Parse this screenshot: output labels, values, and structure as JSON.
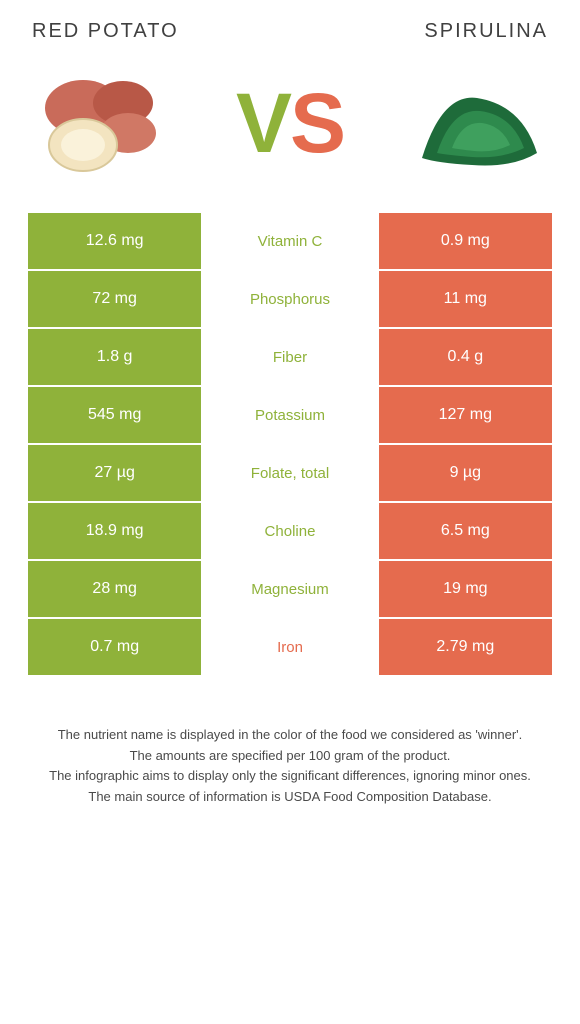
{
  "colors": {
    "leftBg": "#8fb23a",
    "rightBg": "#e56b4e",
    "leftText": "#8fb23a",
    "rightText": "#e56b4e",
    "white": "#ffffff"
  },
  "header": {
    "left": "RED POTATO",
    "right": "SPIRULINA",
    "vs_v": "V",
    "vs_s": "S"
  },
  "rows": [
    {
      "left": "12.6 mg",
      "mid": "Vitamin C",
      "right": "0.9 mg",
      "winner": "left"
    },
    {
      "left": "72 mg",
      "mid": "Phosphorus",
      "right": "11 mg",
      "winner": "left"
    },
    {
      "left": "1.8 g",
      "mid": "Fiber",
      "right": "0.4 g",
      "winner": "left"
    },
    {
      "left": "545 mg",
      "mid": "Potassium",
      "right": "127 mg",
      "winner": "left"
    },
    {
      "left": "27 µg",
      "mid": "Folate, total",
      "right": "9 µg",
      "winner": "left"
    },
    {
      "left": "18.9 mg",
      "mid": "Choline",
      "right": "6.5 mg",
      "winner": "left"
    },
    {
      "left": "28 mg",
      "mid": "Magnesium",
      "right": "19 mg",
      "winner": "left"
    },
    {
      "left": "0.7 mg",
      "mid": "Iron",
      "right": "2.79 mg",
      "winner": "right"
    }
  ],
  "footnotes": [
    "The nutrient name is displayed in the color of the food we considered as 'winner'.",
    "The amounts are specified per 100 gram of the product.",
    "The infographic aims to display only the significant differences, ignoring minor ones.",
    "The main source of information is USDA Food Composition Database."
  ]
}
